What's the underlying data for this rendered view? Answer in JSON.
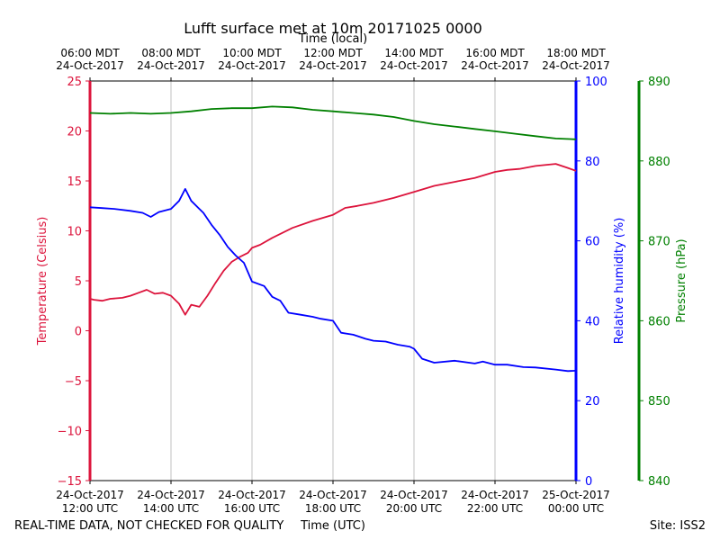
{
  "chart_data": {
    "type": "line",
    "title": "Lufft surface met at 10m 20171025 0000",
    "top_axis_label": "Time (local)",
    "xlabel": "Time (UTC)",
    "footer_left": "REAL-TIME DATA, NOT CHECKED FOR QUALITY",
    "footer_right": "Site: ISS2",
    "xlim": [
      12,
      24
    ],
    "x_ticks_bottom": [
      {
        "x": 12,
        "date": "24-Oct-2017",
        "time": "12:00 UTC"
      },
      {
        "x": 14,
        "date": "24-Oct-2017",
        "time": "14:00 UTC"
      },
      {
        "x": 16,
        "date": "24-Oct-2017",
        "time": "16:00 UTC"
      },
      {
        "x": 18,
        "date": "24-Oct-2017",
        "time": "18:00 UTC"
      },
      {
        "x": 20,
        "date": "24-Oct-2017",
        "time": "20:00 UTC"
      },
      {
        "x": 22,
        "date": "24-Oct-2017",
        "time": "22:00 UTC"
      },
      {
        "x": 24,
        "date": "25-Oct-2017",
        "time": "00:00 UTC"
      }
    ],
    "x_ticks_top": [
      {
        "x": 12,
        "time": "06:00 MDT",
        "date": "24-Oct-2017"
      },
      {
        "x": 14,
        "time": "08:00 MDT",
        "date": "24-Oct-2017"
      },
      {
        "x": 16,
        "time": "10:00 MDT",
        "date": "24-Oct-2017"
      },
      {
        "x": 18,
        "time": "12:00 MDT",
        "date": "24-Oct-2017"
      },
      {
        "x": 20,
        "time": "14:00 MDT",
        "date": "24-Oct-2017"
      },
      {
        "x": 22,
        "time": "16:00 MDT",
        "date": "24-Oct-2017"
      },
      {
        "x": 24,
        "time": "18:00 MDT",
        "date": "24-Oct-2017"
      }
    ],
    "axes": {
      "temperature": {
        "label": "Temperature (Celsius)",
        "color": "#dc143c",
        "ylim": [
          -15,
          25
        ],
        "ticks": [
          -15,
          -10,
          -5,
          0,
          5,
          10,
          15,
          20,
          25
        ],
        "tick_labels": [
          "−15",
          "−10",
          "−5",
          "0",
          "5",
          "10",
          "15",
          "20",
          "25"
        ]
      },
      "humidity": {
        "label": "Relative humidity (%)",
        "color": "#0000ff",
        "ylim": [
          0,
          100
        ],
        "ticks": [
          0,
          20,
          40,
          60,
          80,
          100
        ],
        "tick_labels": [
          "0",
          "20",
          "40",
          "60",
          "80",
          "100"
        ]
      },
      "pressure": {
        "label": "Pressure (hPa)",
        "color": "#008000",
        "ylim": [
          840,
          890
        ],
        "ticks": [
          840,
          850,
          860,
          870,
          880,
          890
        ],
        "tick_labels": [
          "840",
          "850",
          "860",
          "870",
          "880",
          "890"
        ]
      }
    },
    "series": [
      {
        "name": "Temperature",
        "axis": "temperature",
        "color": "#dc143c",
        "x": [
          12.0,
          12.1,
          12.3,
          12.5,
          12.8,
          13.0,
          13.2,
          13.4,
          13.6,
          13.8,
          14.0,
          14.2,
          14.35,
          14.5,
          14.7,
          14.9,
          15.1,
          15.3,
          15.5,
          15.7,
          15.9,
          16.0,
          16.2,
          16.5,
          17.0,
          17.5,
          18.0,
          18.3,
          18.6,
          19.0,
          19.5,
          20.0,
          20.5,
          21.0,
          21.5,
          22.0,
          22.3,
          22.6,
          23.0,
          23.5,
          23.8,
          24.0
        ],
        "y": [
          3.2,
          3.1,
          3.0,
          3.2,
          3.3,
          3.5,
          3.8,
          4.1,
          3.7,
          3.8,
          3.5,
          2.7,
          1.6,
          2.6,
          2.4,
          3.5,
          4.8,
          6.0,
          6.9,
          7.4,
          7.8,
          8.3,
          8.6,
          9.3,
          10.3,
          11.0,
          11.6,
          12.3,
          12.5,
          12.8,
          13.3,
          13.9,
          14.5,
          14.9,
          15.3,
          15.9,
          16.1,
          16.2,
          16.5,
          16.7,
          16.3,
          16.0
        ]
      },
      {
        "name": "Relative humidity",
        "axis": "humidity",
        "color": "#0000ff",
        "x": [
          12.0,
          12.3,
          12.6,
          13.0,
          13.3,
          13.5,
          13.7,
          14.0,
          14.2,
          14.35,
          14.5,
          14.7,
          14.8,
          15.0,
          15.2,
          15.4,
          15.6,
          15.8,
          16.0,
          16.3,
          16.5,
          16.7,
          16.9,
          17.2,
          17.5,
          17.7,
          18.0,
          18.2,
          18.5,
          18.8,
          19.0,
          19.3,
          19.6,
          19.9,
          20.0,
          20.2,
          20.5,
          21.0,
          21.5,
          21.7,
          22.0,
          22.3,
          22.7,
          23.0,
          23.5,
          23.8,
          24.0
        ],
        "y": [
          68.4,
          68.2,
          68.0,
          67.5,
          67.0,
          66.0,
          67.2,
          68.0,
          70.0,
          73.0,
          70.0,
          68.0,
          67.0,
          64.0,
          61.5,
          58.5,
          56.3,
          54.5,
          49.8,
          48.7,
          46.0,
          45.0,
          42.0,
          41.5,
          41.0,
          40.5,
          40.0,
          37.0,
          36.5,
          35.5,
          35.0,
          34.8,
          34.0,
          33.5,
          33.0,
          30.5,
          29.5,
          30.0,
          29.3,
          29.8,
          29.0,
          29.0,
          28.4,
          28.3,
          27.8,
          27.4,
          27.5
        ]
      },
      {
        "name": "Pressure",
        "axis": "pressure",
        "color": "#008000",
        "x": [
          12.0,
          12.5,
          13.0,
          13.5,
          14.0,
          14.5,
          15.0,
          15.5,
          16.0,
          16.5,
          17.0,
          17.5,
          18.0,
          18.5,
          19.0,
          19.5,
          20.0,
          20.5,
          21.0,
          21.5,
          22.0,
          22.5,
          23.0,
          23.5,
          24.0
        ],
        "y": [
          886.0,
          885.9,
          886.0,
          885.9,
          886.0,
          886.2,
          886.5,
          886.6,
          886.6,
          886.8,
          886.7,
          886.4,
          886.2,
          886.0,
          885.8,
          885.5,
          885.0,
          884.6,
          884.3,
          884.0,
          883.7,
          883.4,
          883.1,
          882.8,
          882.7
        ]
      }
    ]
  }
}
